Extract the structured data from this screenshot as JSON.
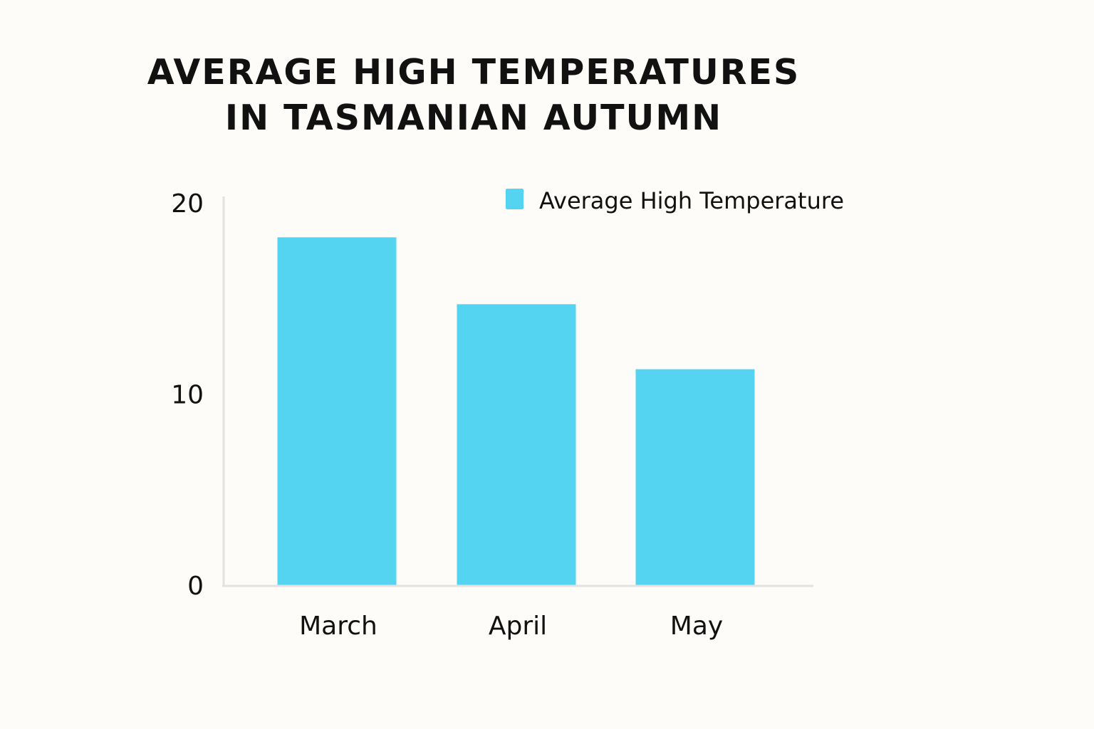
{
  "chart_data": {
    "type": "bar",
    "title_lines": [
      "AVERAGE HIGH TEMPERATURES",
      "IN TASMANIAN AUTUMN"
    ],
    "categories": [
      "March",
      "April",
      "May"
    ],
    "series": [
      {
        "name": "Average High Temperature",
        "values": [
          18.2,
          14.7,
          11.3
        ],
        "color": "#55d4f2"
      }
    ],
    "ylim": [
      0,
      22
    ],
    "yticks": [
      0,
      10,
      20
    ],
    "grid": false,
    "legend_position": "top-right",
    "axis_color": "#e2e2e2"
  }
}
